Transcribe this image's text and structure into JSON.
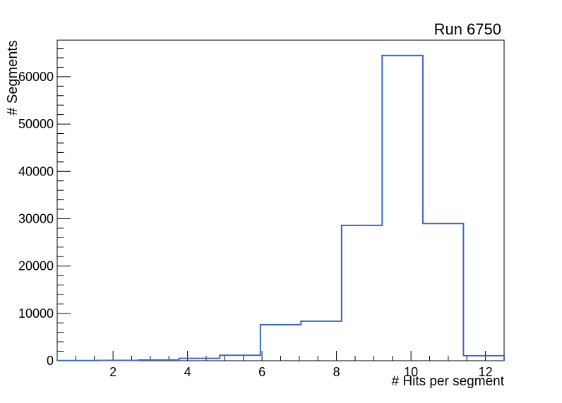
{
  "canvas": {
    "background": "#ffffff"
  },
  "chart_data": {
    "type": "histogram-step",
    "title": "Run 6750",
    "xlabel": "# Hits per segment",
    "ylabel": "# Segments",
    "xlim": [
      0.5,
      12.5
    ],
    "ylim": [
      0,
      67725
    ],
    "grid": false,
    "legend": "none",
    "ticks": "inside",
    "line_color": "#3b68c3",
    "frame_color": "#000000",
    "bin_edges": [
      0.5,
      1.591,
      2.682,
      3.773,
      4.864,
      5.955,
      7.045,
      8.136,
      9.227,
      10.318,
      11.409,
      12.5
    ],
    "counts": [
      40,
      80,
      150,
      500,
      1150,
      7600,
      8350,
      28600,
      64500,
      29000,
      1050
    ],
    "x_major_ticks": [
      2,
      4,
      6,
      8,
      10,
      12
    ],
    "x_major_tick_labels": [
      "2",
      "4",
      "6",
      "8",
      "10",
      "12"
    ],
    "x_minor_step": 0.5,
    "y_major_ticks": [
      0,
      10000,
      20000,
      30000,
      40000,
      50000,
      60000
    ],
    "y_major_tick_labels": [
      "0",
      "10000",
      "20000",
      "30000",
      "40000",
      "50000",
      "60000"
    ],
    "y_minor_step": 2000
  }
}
